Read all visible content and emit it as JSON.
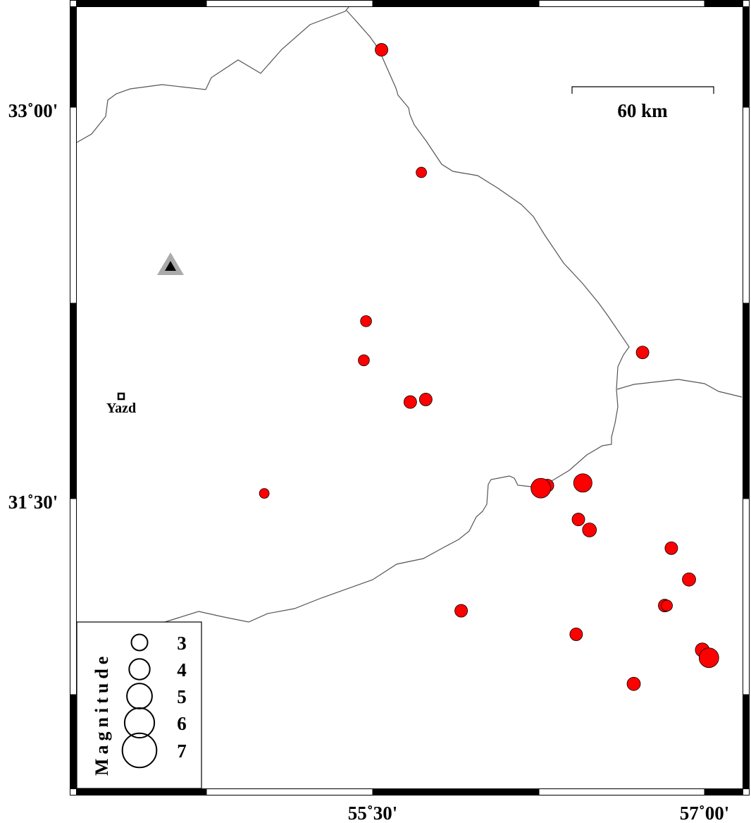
{
  "map": {
    "region": {
      "lon_min": 54.16,
      "lon_max": 57.17,
      "lat_min": 30.39,
      "lat_max": 33.38
    },
    "x_ticks": [
      {
        "lon": 55.5,
        "label": "55˚30'"
      },
      {
        "lon": 57.0,
        "label": "57˚00'"
      }
    ],
    "y_ticks": [
      {
        "lat": 33.0,
        "label": "33˚00'"
      },
      {
        "lat": 31.5,
        "label": "31˚30'"
      }
    ],
    "scale_bar": {
      "label": "60 km",
      "length_km": 60
    },
    "city": {
      "name": "Yazd",
      "lon": 54.7,
      "lat": 31.88
    },
    "station": {
      "symbol": "triangle",
      "lon": 54.93,
      "lat": 32.41
    },
    "colors": {
      "event_fill": "#ff0000",
      "event_stroke": "#000000",
      "station_outer": "#aaaaaa",
      "station_inner": "#000000",
      "boundary": "#555555"
    }
  },
  "legend": {
    "title": "Magnitude",
    "entries": [
      {
        "mag": 3,
        "label": "3"
      },
      {
        "mag": 4,
        "label": "4"
      },
      {
        "mag": 5,
        "label": "5"
      },
      {
        "mag": 6,
        "label": "6"
      },
      {
        "mag": 7,
        "label": "7"
      }
    ]
  },
  "events": [
    {
      "lon": 55.54,
      "lat": 33.22,
      "mag": 3.9
    },
    {
      "lon": 55.72,
      "lat": 32.75,
      "mag": 3.2
    },
    {
      "lon": 55.47,
      "lat": 32.18,
      "mag": 3.4
    },
    {
      "lon": 55.46,
      "lat": 32.03,
      "mag": 3.4
    },
    {
      "lon": 55.67,
      "lat": 31.87,
      "mag": 3.9
    },
    {
      "lon": 55.74,
      "lat": 31.88,
      "mag": 3.9
    },
    {
      "lon": 55.01,
      "lat": 31.52,
      "mag": 3.0
    },
    {
      "lon": 56.72,
      "lat": 32.06,
      "mag": 3.9
    },
    {
      "lon": 56.29,
      "lat": 31.55,
      "mag": 3.9
    },
    {
      "lon": 56.26,
      "lat": 31.54,
      "mag": 6.1
    },
    {
      "lon": 56.45,
      "lat": 31.56,
      "mag": 5.7
    },
    {
      "lon": 56.43,
      "lat": 31.42,
      "mag": 3.9
    },
    {
      "lon": 56.48,
      "lat": 31.38,
      "mag": 4.3
    },
    {
      "lon": 56.85,
      "lat": 31.31,
      "mag": 3.9
    },
    {
      "lon": 56.93,
      "lat": 31.19,
      "mag": 4.1
    },
    {
      "lon": 56.82,
      "lat": 31.09,
      "mag": 3.9
    },
    {
      "lon": 56.83,
      "lat": 31.09,
      "mag": 3.4
    },
    {
      "lon": 55.9,
      "lat": 31.07,
      "mag": 3.9
    },
    {
      "lon": 56.42,
      "lat": 30.98,
      "mag": 3.9
    },
    {
      "lon": 56.99,
      "lat": 30.92,
      "mag": 4.3
    },
    {
      "lon": 57.02,
      "lat": 30.89,
      "mag": 6.1
    },
    {
      "lon": 56.68,
      "lat": 30.79,
      "mag": 4.1
    }
  ]
}
